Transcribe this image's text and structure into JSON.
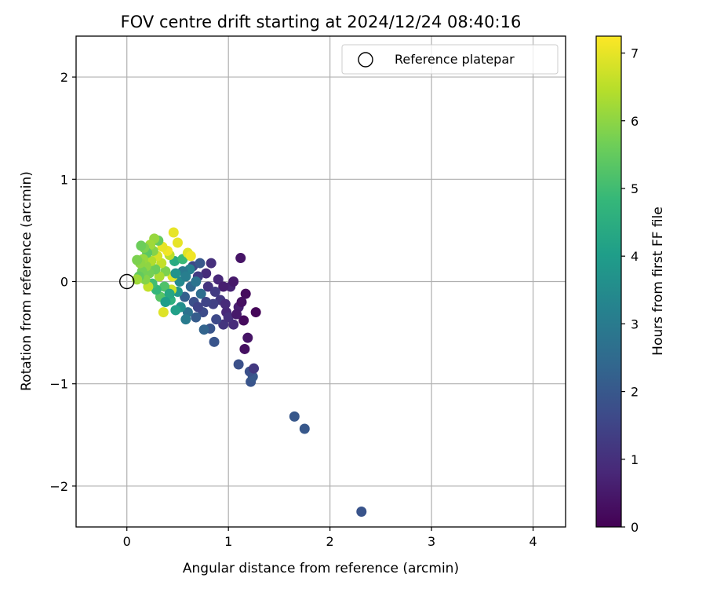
{
  "chart_data": {
    "type": "scatter",
    "title": "FOV centre drift starting at 2024/12/24 08:40:16",
    "xlabel": "Angular distance from reference (arcmin)",
    "ylabel": "Rotation from reference (arcmin)",
    "xlim": [
      -0.5,
      4.32
    ],
    "ylim": [
      -2.4,
      2.4
    ],
    "x_ticks": [
      0,
      1,
      2,
      3,
      4
    ],
    "y_ticks": [
      -2,
      -1,
      0,
      1,
      2
    ],
    "x_tick_labels": [
      "0",
      "1",
      "2",
      "3",
      "4"
    ],
    "y_tick_labels": [
      "−2",
      "−1",
      "0",
      "1",
      "2"
    ],
    "grid": true,
    "legend": {
      "position": "upper right",
      "entries": [
        {
          "label": "Reference platepar",
          "marker": "open-circle"
        }
      ]
    },
    "reference_point": {
      "x": 0,
      "y": 0
    },
    "colorbar": {
      "label": "Hours from first FF file",
      "range": [
        0,
        7.25
      ],
      "ticks": [
        0,
        1,
        2,
        3,
        4,
        5,
        6,
        7
      ],
      "tick_labels": [
        "0",
        "1",
        "2",
        "3",
        "4",
        "5",
        "6",
        "7"
      ],
      "colormap": "viridis",
      "colors": [
        "#440154",
        "#482878",
        "#3e4989",
        "#31688e",
        "#26828e",
        "#1f9e89",
        "#35b779",
        "#6ece58",
        "#b5de2b",
        "#fde725"
      ]
    },
    "points": [
      {
        "x": 2.31,
        "y": -2.25,
        "h": 1.9
      },
      {
        "x": 1.65,
        "y": -1.32,
        "h": 2.0
      },
      {
        "x": 1.75,
        "y": -1.44,
        "h": 2.0
      },
      {
        "x": 1.22,
        "y": -0.98,
        "h": 1.9
      },
      {
        "x": 1.24,
        "y": -0.93,
        "h": 2.0
      },
      {
        "x": 1.21,
        "y": -0.88,
        "h": 1.8
      },
      {
        "x": 1.25,
        "y": -0.85,
        "h": 1.2
      },
      {
        "x": 1.1,
        "y": -0.81,
        "h": 1.8
      },
      {
        "x": 1.16,
        "y": -0.66,
        "h": 0.3
      },
      {
        "x": 0.86,
        "y": -0.59,
        "h": 1.9
      },
      {
        "x": 1.19,
        "y": -0.55,
        "h": 0.4
      },
      {
        "x": 1.12,
        "y": 0.23,
        "h": 0.4
      },
      {
        "x": 1.27,
        "y": -0.3,
        "h": 0.1
      },
      {
        "x": 1.17,
        "y": -0.12,
        "h": 0.2
      },
      {
        "x": 1.15,
        "y": -0.38,
        "h": 0.2
      },
      {
        "x": 1.1,
        "y": -0.25,
        "h": 0.6
      },
      {
        "x": 1.05,
        "y": -0.42,
        "h": 0.9
      },
      {
        "x": 1.02,
        "y": -0.05,
        "h": 0.7
      },
      {
        "x": 1.05,
        "y": 0.0,
        "h": 0.5
      },
      {
        "x": 0.98,
        "y": -0.3,
        "h": 0.8
      },
      {
        "x": 0.95,
        "y": -0.42,
        "h": 1.1
      },
      {
        "x": 0.92,
        "y": -0.18,
        "h": 1.2
      },
      {
        "x": 0.9,
        "y": 0.02,
        "h": 0.8
      },
      {
        "x": 0.88,
        "y": -0.37,
        "h": 1.6
      },
      {
        "x": 0.85,
        "y": -0.22,
        "h": 1.4
      },
      {
        "x": 0.83,
        "y": 0.18,
        "h": 1.0
      },
      {
        "x": 0.82,
        "y": -0.46,
        "h": 1.9
      },
      {
        "x": 0.8,
        "y": -0.05,
        "h": 1.1
      },
      {
        "x": 0.78,
        "y": 0.08,
        "h": 0.9
      },
      {
        "x": 0.76,
        "y": -0.47,
        "h": 2.3
      },
      {
        "x": 0.75,
        "y": -0.3,
        "h": 1.7
      },
      {
        "x": 0.73,
        "y": -0.12,
        "h": 2.6
      },
      {
        "x": 0.7,
        "y": 0.05,
        "h": 1.3
      },
      {
        "x": 0.68,
        "y": -0.35,
        "h": 2.1
      },
      {
        "x": 0.66,
        "y": -0.2,
        "h": 1.8
      },
      {
        "x": 0.65,
        "y": 0.15,
        "h": 1.6
      },
      {
        "x": 0.63,
        "y": -0.05,
        "h": 2.4
      },
      {
        "x": 0.62,
        "y": 0.12,
        "h": 3.2
      },
      {
        "x": 0.6,
        "y": -0.3,
        "h": 2.7
      },
      {
        "x": 0.58,
        "y": -0.37,
        "h": 3.0
      },
      {
        "x": 0.57,
        "y": -0.15,
        "h": 2.2
      },
      {
        "x": 0.55,
        "y": 0.1,
        "h": 2.9
      },
      {
        "x": 0.53,
        "y": -0.25,
        "h": 3.6
      },
      {
        "x": 0.52,
        "y": 0.0,
        "h": 3.4
      },
      {
        "x": 0.5,
        "y": -0.1,
        "h": 3.8
      },
      {
        "x": 0.48,
        "y": -0.28,
        "h": 4.1
      },
      {
        "x": 0.47,
        "y": 0.2,
        "h": 4.4
      },
      {
        "x": 0.46,
        "y": 0.48,
        "h": 7.0
      },
      {
        "x": 0.45,
        "y": 0.05,
        "h": 6.9
      },
      {
        "x": 0.44,
        "y": -0.08,
        "h": 6.7
      },
      {
        "x": 0.43,
        "y": -0.18,
        "h": 4.6
      },
      {
        "x": 0.42,
        "y": 0.26,
        "h": 6.5
      },
      {
        "x": 0.4,
        "y": 0.3,
        "h": 7.1
      },
      {
        "x": 0.38,
        "y": 0.1,
        "h": 5.8
      },
      {
        "x": 0.37,
        "y": -0.05,
        "h": 5.2
      },
      {
        "x": 0.36,
        "y": -0.3,
        "h": 6.9
      },
      {
        "x": 0.35,
        "y": 0.34,
        "h": 7.0
      },
      {
        "x": 0.34,
        "y": 0.18,
        "h": 6.6
      },
      {
        "x": 0.33,
        "y": -0.15,
        "h": 5.3
      },
      {
        "x": 0.32,
        "y": 0.05,
        "h": 6.3
      },
      {
        "x": 0.31,
        "y": 0.4,
        "h": 5.5
      },
      {
        "x": 0.3,
        "y": 0.25,
        "h": 6.8
      },
      {
        "x": 0.29,
        "y": -0.08,
        "h": 4.8
      },
      {
        "x": 0.28,
        "y": 0.12,
        "h": 5.6
      },
      {
        "x": 0.27,
        "y": 0.42,
        "h": 6.1
      },
      {
        "x": 0.26,
        "y": 0.3,
        "h": 5.9
      },
      {
        "x": 0.25,
        "y": -0.02,
        "h": 5.0
      },
      {
        "x": 0.24,
        "y": 0.2,
        "h": 6.4
      },
      {
        "x": 0.23,
        "y": 0.36,
        "h": 6.2
      },
      {
        "x": 0.22,
        "y": 0.08,
        "h": 5.7
      },
      {
        "x": 0.21,
        "y": -0.05,
        "h": 6.6
      },
      {
        "x": 0.2,
        "y": 0.28,
        "h": 5.4
      },
      {
        "x": 0.19,
        "y": 0.15,
        "h": 6.0
      },
      {
        "x": 0.18,
        "y": 0.02,
        "h": 5.9
      },
      {
        "x": 0.17,
        "y": 0.33,
        "h": 5.8
      },
      {
        "x": 0.16,
        "y": 0.22,
        "h": 6.1
      },
      {
        "x": 0.15,
        "y": 0.1,
        "h": 5.7
      },
      {
        "x": 0.14,
        "y": 0.35,
        "h": 5.6
      },
      {
        "x": 0.13,
        "y": 0.18,
        "h": 6.0
      },
      {
        "x": 0.12,
        "y": 0.05,
        "h": 5.5
      },
      {
        "x": 0.1,
        "y": 0.21,
        "h": 5.8
      },
      {
        "x": 0.1,
        "y": 0.02,
        "h": 6.2
      },
      {
        "x": 0.55,
        "y": 0.22,
        "h": 4.9
      },
      {
        "x": 0.6,
        "y": 0.28,
        "h": 6.9
      },
      {
        "x": 0.63,
        "y": 0.25,
        "h": 7.1
      },
      {
        "x": 0.5,
        "y": 0.38,
        "h": 7.0
      },
      {
        "x": 0.42,
        "y": -0.12,
        "h": 4.3
      },
      {
        "x": 0.38,
        "y": -0.2,
        "h": 4.0
      },
      {
        "x": 0.7,
        "y": -0.25,
        "h": 1.5
      },
      {
        "x": 0.72,
        "y": 0.18,
        "h": 2.0
      },
      {
        "x": 0.68,
        "y": 0.0,
        "h": 2.8
      },
      {
        "x": 0.95,
        "y": -0.05,
        "h": 0.6
      },
      {
        "x": 0.97,
        "y": -0.22,
        "h": 0.9
      },
      {
        "x": 1.0,
        "y": -0.35,
        "h": 1.0
      },
      {
        "x": 1.08,
        "y": -0.32,
        "h": 0.5
      },
      {
        "x": 1.13,
        "y": -0.2,
        "h": 0.3
      },
      {
        "x": 0.87,
        "y": -0.1,
        "h": 1.3
      },
      {
        "x": 0.78,
        "y": -0.2,
        "h": 1.5
      },
      {
        "x": 0.58,
        "y": 0.05,
        "h": 3.1
      },
      {
        "x": 0.48,
        "y": 0.08,
        "h": 3.7
      }
    ]
  }
}
